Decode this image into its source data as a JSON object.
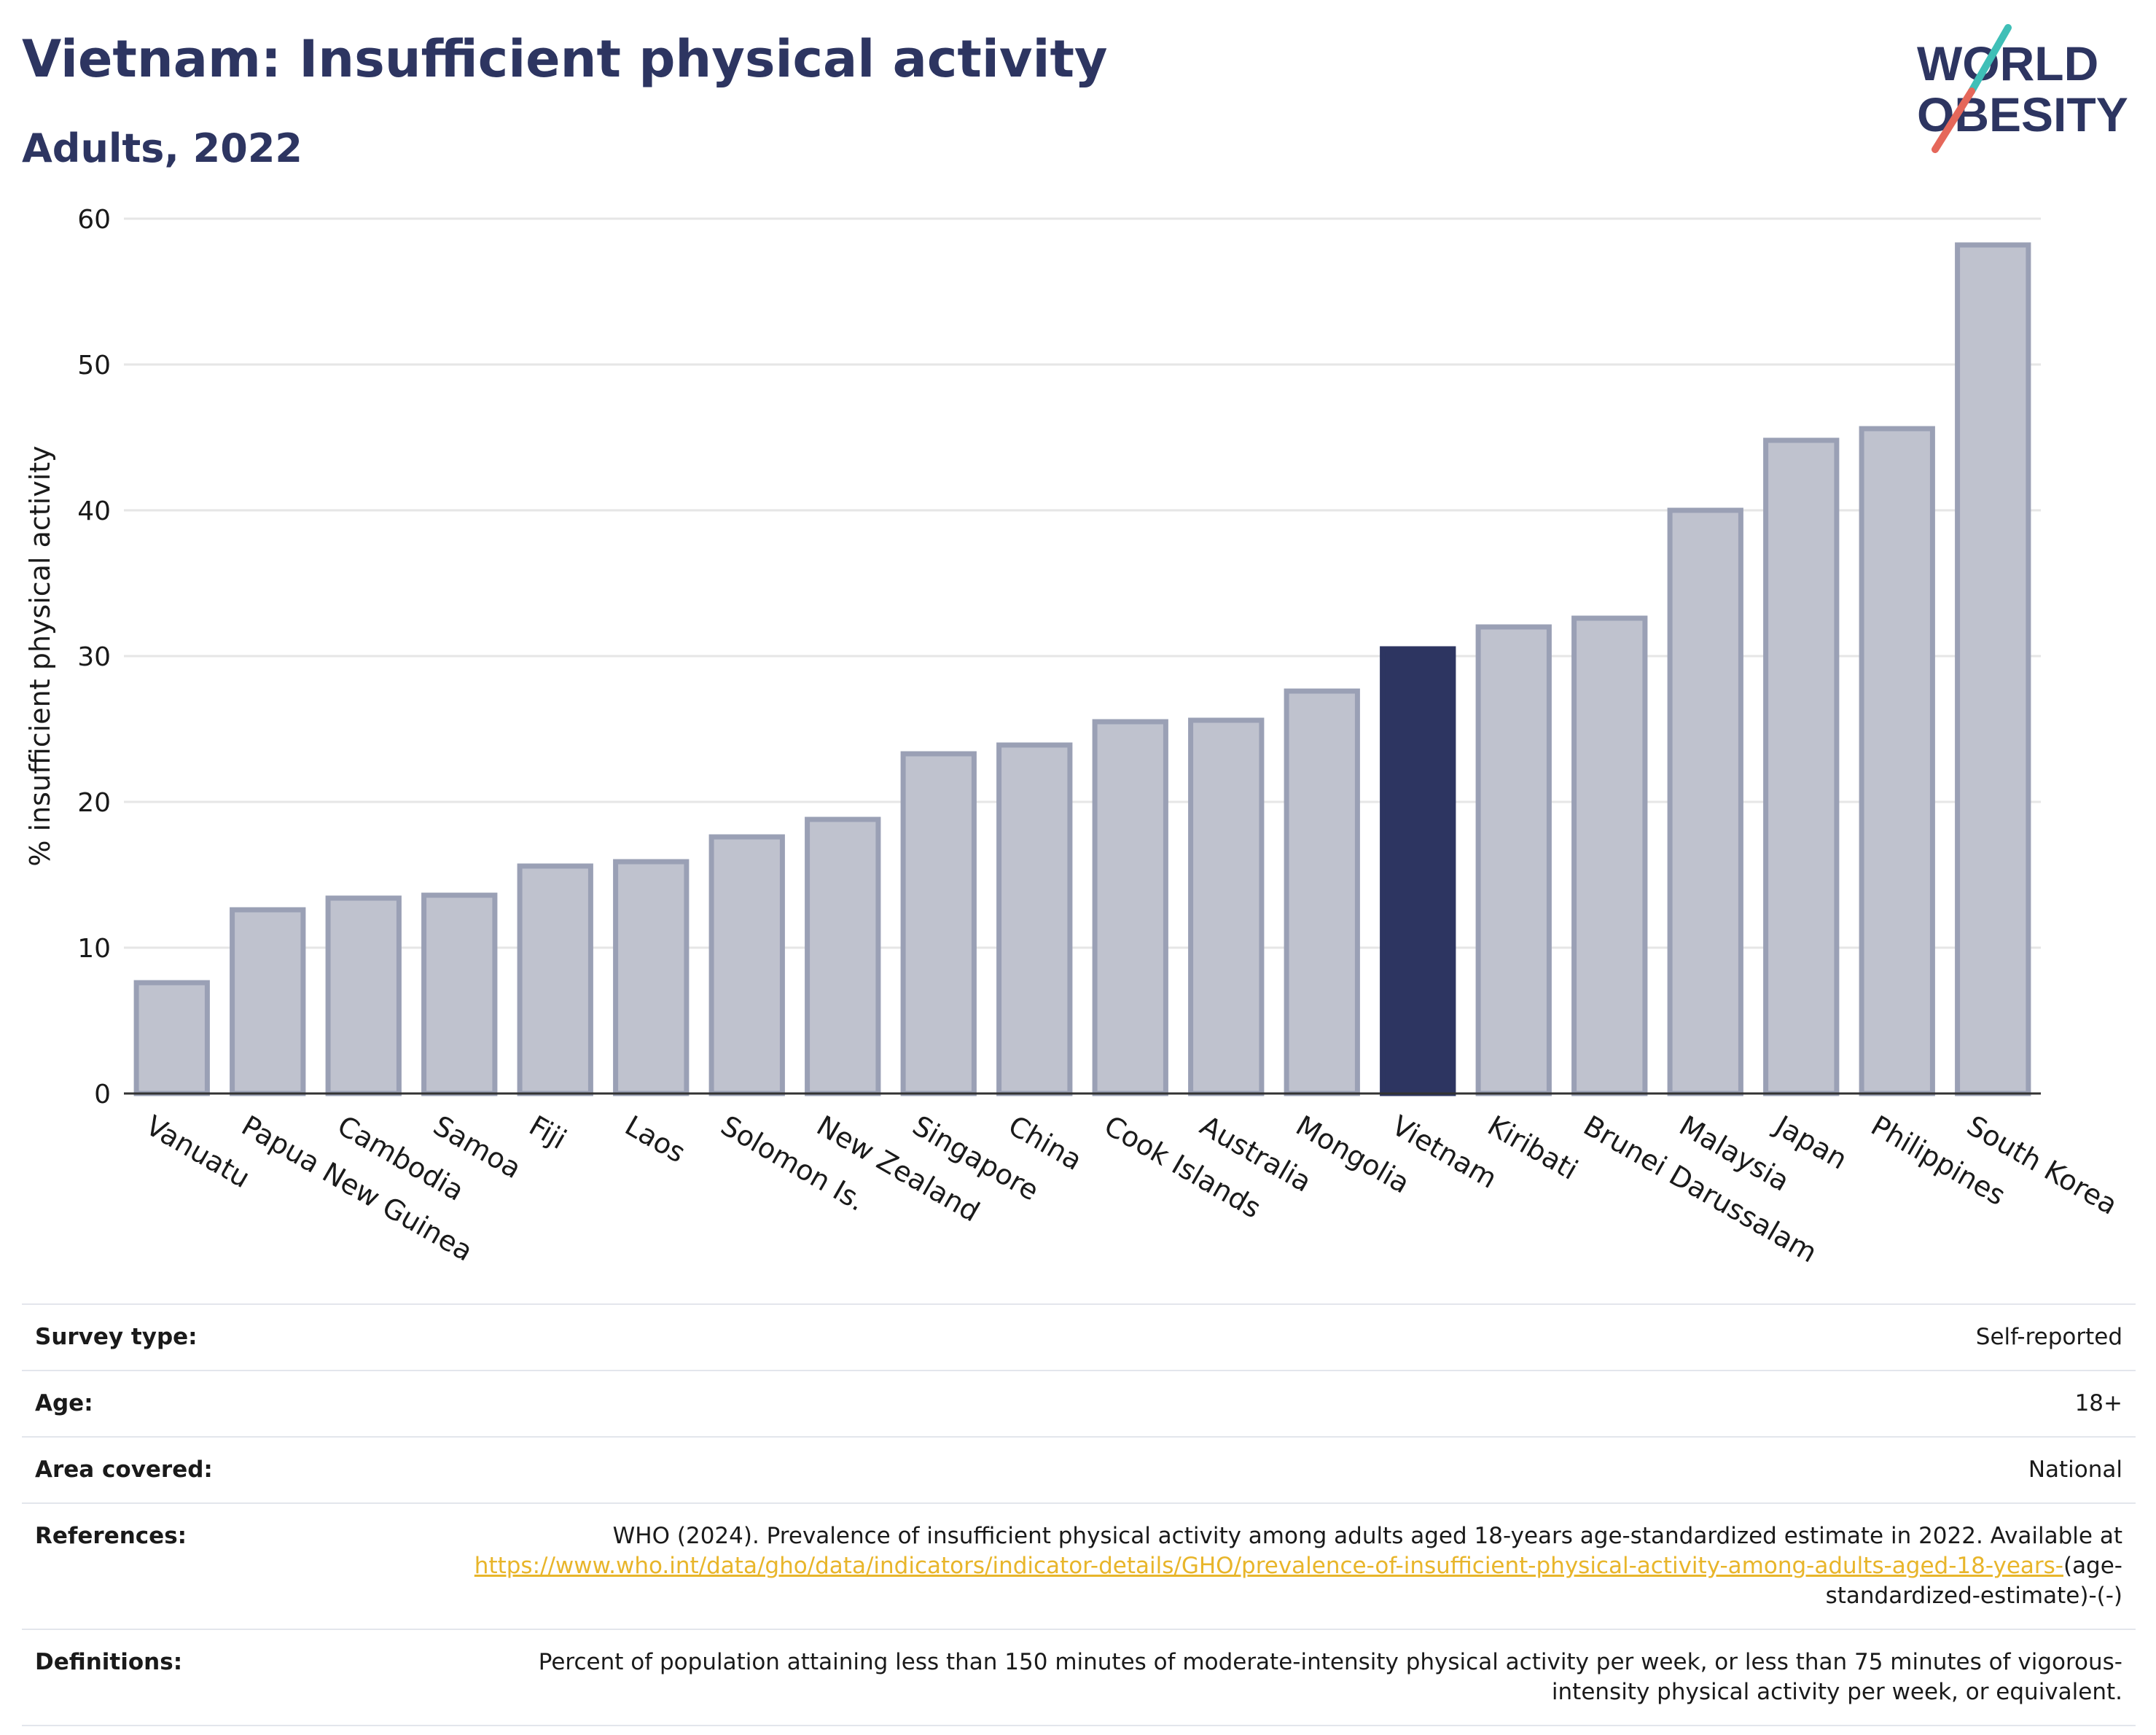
{
  "header": {
    "title": "Vietnam: Insufficient physical activity",
    "subtitle": "Adults, 2022"
  },
  "logo": {
    "line1": "WORLD",
    "line2": "OBESITY",
    "colors": {
      "text": "#2d3561",
      "slash_top": "#3fbfb7",
      "slash_bottom": "#e5675a"
    }
  },
  "chart_data": {
    "type": "bar",
    "title": "Vietnam: Insufficient physical activity",
    "subtitle": "Adults, 2022",
    "xlabel": "",
    "ylabel": "% insufficient physical activity",
    "ylim": [
      0,
      60
    ],
    "yticks": [
      0,
      10,
      20,
      30,
      40,
      50,
      60
    ],
    "grid": true,
    "highlight": "Vietnam",
    "colors": {
      "bar": "#bfc2ce",
      "bar_edge": "#9aa0b5",
      "highlight": "#2d3561"
    },
    "categories": [
      "Vanuatu",
      "Papua New Guinea",
      "Cambodia",
      "Samoa",
      "Fiji",
      "Laos",
      "Solomon Is.",
      "New Zealand",
      "Singapore",
      "China",
      "Cook Islands",
      "Australia",
      "Mongolia",
      "Vietnam",
      "Kiribati",
      "Brunei Darussalam",
      "Malaysia",
      "Japan",
      "Philippines",
      "South Korea"
    ],
    "values": [
      7.6,
      12.6,
      13.4,
      13.6,
      15.6,
      15.9,
      17.6,
      18.8,
      23.3,
      23.9,
      25.5,
      25.6,
      27.6,
      30.5,
      32.0,
      32.6,
      40.0,
      44.8,
      45.6,
      58.2
    ]
  },
  "meta": [
    {
      "label": "Survey type:",
      "value": "Self-reported"
    },
    {
      "label": "Age:",
      "value": "18+"
    },
    {
      "label": "Area covered:",
      "value": "National"
    },
    {
      "label": "References:",
      "value_pre": "WHO (2024). Prevalence of insufficient physical activity among adults aged 18-years age-standardized estimate in 2022. Available at ",
      "link": "https://www.who.int/data/gho/data/indicators/indicator-details/GHO/prevalence-of-insufficient-physical-activity-among-adults-aged-18-years-",
      "value_post": "(age-standardized-estimate)-(-)"
    },
    {
      "label": "Definitions:",
      "value": "Percent of population attaining less than 150 minutes of moderate-intensity physical activity per week, or less than 75 minutes of vigorous-intensity physical activity per week, or equivalent."
    }
  ]
}
